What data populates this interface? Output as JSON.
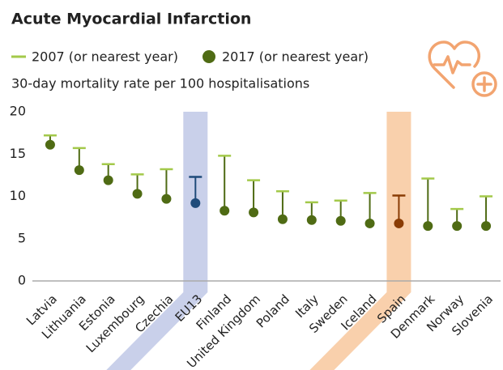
{
  "chart_data": {
    "type": "dot_range",
    "title": "Acute Myocardial Infarction",
    "subtitle": "30-day mortality rate per 100 hospitalisations",
    "categories": [
      "Latvia",
      "Lithuania",
      "Estonia",
      "Luxembourg",
      "Czechia",
      "EU13",
      "Finland",
      "United Kingdom",
      "Poland",
      "Italy",
      "Sweden",
      "Iceland",
      "Spain",
      "Denmark",
      "Norway",
      "Slovenia"
    ],
    "series": [
      {
        "name": "2007 (or nearest year)",
        "color": "#a3c94a",
        "marker": "dash",
        "values": [
          17.2,
          15.7,
          13.8,
          12.6,
          13.2,
          12.3,
          14.8,
          11.9,
          10.6,
          9.3,
          9.5,
          10.4,
          10.1,
          12.1,
          8.5,
          10.0
        ]
      },
      {
        "name": "2017 (or nearest year)",
        "color": "#4f6b14",
        "marker": "dot",
        "values": [
          16.1,
          13.1,
          11.9,
          10.3,
          9.7,
          9.2,
          8.3,
          8.1,
          7.3,
          7.2,
          7.1,
          6.8,
          6.8,
          6.5,
          6.5,
          6.5
        ]
      }
    ],
    "highlights": [
      {
        "category_index": 5,
        "band_color": "#c9d0ea",
        "mark_color": "#1f4b7a"
      },
      {
        "category_index": 12,
        "band_color": "#f9d0ac",
        "mark_color": "#8a3c05"
      }
    ],
    "ylim": [
      0,
      20
    ],
    "yticks": [
      0,
      5,
      10,
      15,
      20
    ],
    "grid": false
  }
}
